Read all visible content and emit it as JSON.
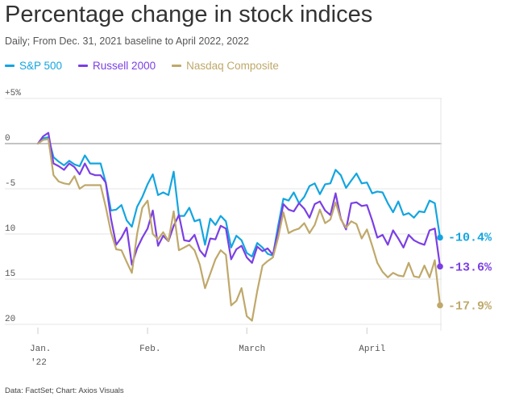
{
  "chart_data": {
    "type": "line",
    "title": "Percentage change in stock indices",
    "subtitle": "Daily; From Dec. 31, 2021 baseline to April 2022, 2022",
    "source": "Data: FactSet; Chart: Axios Visuals",
    "xlabel": "",
    "ylabel": "",
    "ylim": [
      5,
      -20
    ],
    "yticks": [
      {
        "value": 5,
        "label": "+5%"
      },
      {
        "value": 0,
        "label": "0"
      },
      {
        "value": -5,
        "label": "-5"
      },
      {
        "value": -10,
        "label": "10"
      },
      {
        "value": -15,
        "label": "15"
      },
      {
        "value": -20,
        "label": "20"
      }
    ],
    "xticks": [
      {
        "index": 0,
        "label": "Jan."
      },
      {
        "index": 21,
        "label": "Feb."
      },
      {
        "index": 40,
        "label": "March"
      },
      {
        "index": 63,
        "label": "April"
      }
    ],
    "year_label": "'22",
    "series": [
      {
        "name": "S&P 500",
        "color": "#13a5e0",
        "end_label": "-10.4%",
        "values": [
          0,
          0.6,
          0.7,
          -1.5,
          -2,
          -2.4,
          -1.9,
          -2.3,
          -2.5,
          -1.3,
          -2.2,
          -2.2,
          -2.2,
          -4.3,
          -7.4,
          -7.3,
          -6.8,
          -8.5,
          -9.2,
          -7,
          -5.9,
          -4.5,
          -3.4,
          -5.7,
          -5.4,
          -5.7,
          -3.1,
          -8,
          -8,
          -7.1,
          -8.6,
          -8.4,
          -11.2,
          -8.3,
          -9,
          -8,
          -8.6,
          -11.5,
          -10.2,
          -10.7,
          -12.1,
          -12.5,
          -11,
          -11.5,
          -12.2,
          -12.4,
          -9.1,
          -6.1,
          -6.3,
          -5.4,
          -6.6,
          -5.9,
          -4.7,
          -4.4,
          -5.6,
          -4.5,
          -4.4,
          -2.9,
          -3.5,
          -4.9,
          -4.1,
          -3.3,
          -4.4,
          -4.3,
          -5.5,
          -5.3,
          -5.4,
          -6.6,
          -7.6,
          -6.4,
          -7.9,
          -7.7,
          -8.2,
          -7.5,
          -7.6,
          -6.3,
          -6.6,
          -10.4
        ]
      },
      {
        "name": "Russell 2000",
        "color": "#7b3fe4",
        "end_label": "-13.6%",
        "values": [
          0,
          0.8,
          1.2,
          -2.2,
          -2.5,
          -2.9,
          -2.2,
          -2.6,
          -3.4,
          -2.2,
          -3.3,
          -3.5,
          -3.5,
          -4.3,
          -8.3,
          -11.2,
          -10.4,
          -9.3,
          -13.4,
          -11.6,
          -10.4,
          -9.4,
          -7.4,
          -11.3,
          -10.2,
          -10.8,
          -9.1,
          -7.9,
          -10.7,
          -10.8,
          -10.1,
          -11.8,
          -12.5,
          -10.5,
          -10.6,
          -9.1,
          -9.4,
          -12.8,
          -11.7,
          -11.3,
          -12.6,
          -13.2,
          -11.4,
          -11.9,
          -11.6,
          -12.3,
          -9.7,
          -6.7,
          -7.3,
          -7.5,
          -6.6,
          -7.2,
          -8.2,
          -6.7,
          -6.4,
          -7.4,
          -7.9,
          -5.5,
          -8.3,
          -9.5,
          -6.6,
          -6.5,
          -6.9,
          -6.8,
          -8.5,
          -10.4,
          -10.1,
          -11.2,
          -9.6,
          -10.5,
          -11.5,
          -10.1,
          -10.7,
          -11,
          -11.2,
          -9.6,
          -9.4,
          -13.6
        ]
      },
      {
        "name": "Nasdaq Composite",
        "color": "#bfa86a",
        "end_label": "-17.9%",
        "values": [
          0,
          0.4,
          0.5,
          -3.5,
          -4.2,
          -4.4,
          -4.5,
          -3.6,
          -5,
          -4.6,
          -4.6,
          -4.6,
          -4.6,
          -7,
          -9.8,
          -11.7,
          -11.8,
          -13.1,
          -14.3,
          -10,
          -7.1,
          -6.3,
          -10,
          -10.6,
          -9.8,
          -10.8,
          -7.5,
          -11.8,
          -11.5,
          -11.2,
          -11.8,
          -13.4,
          -16,
          -14.4,
          -12.8,
          -11.8,
          -12.3,
          -17.9,
          -17.4,
          -16,
          -19.1,
          -19.6,
          -16.3,
          -13.5,
          -13,
          -12.6,
          -10.4,
          -7.6,
          -9.9,
          -9.6,
          -9.4,
          -8.8,
          -9.9,
          -9,
          -7.3,
          -8.8,
          -8.4,
          -6.5,
          -8.4,
          -9.3,
          -8.6,
          -8.9,
          -10.5,
          -9.5,
          -11.3,
          -13.2,
          -14.2,
          -14.8,
          -14.3,
          -14.6,
          -14.7,
          -13.2,
          -14.7,
          -14.8,
          -13.5,
          -14.8,
          -12.9,
          -17.9
        ]
      }
    ]
  }
}
